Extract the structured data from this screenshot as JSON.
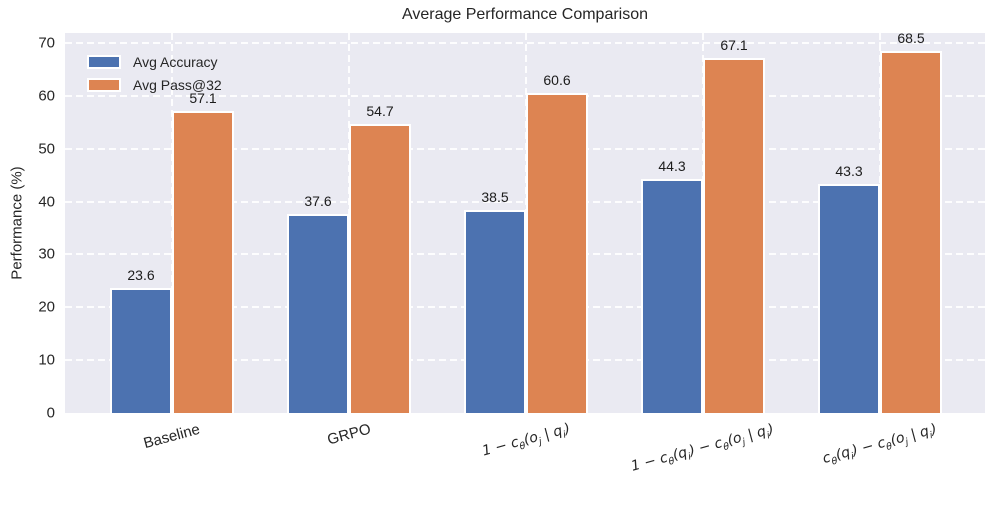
{
  "chart_data": {
    "type": "bar",
    "title": "Average Performance Comparison",
    "ylabel": "Performance (%)",
    "xlabel": "",
    "categories": [
      "Baseline",
      "GRPO",
      "1 − c_θ(o_j | q_i)",
      "1 − c_θ(q_i) − c_θ(o_j | q_i)",
      "c_θ(q_i) − c_θ(o_j | q_i)"
    ],
    "series": [
      {
        "name": "Avg Accuracy",
        "color": "#4C72B0",
        "values": [
          23.6,
          37.6,
          38.5,
          44.3,
          43.3
        ]
      },
      {
        "name": "Avg Pass@32",
        "color": "#DD8452",
        "values": [
          57.1,
          54.7,
          60.6,
          67.1,
          68.5
        ]
      }
    ],
    "yticks": [
      0,
      10,
      20,
      30,
      40,
      50,
      60,
      70
    ],
    "ylim": [
      0,
      71.9
    ],
    "grid": {
      "horizontal": true,
      "vertical": true,
      "style": "dashed",
      "color": "#FFFFFF"
    },
    "plot_background": "#EAEAF2",
    "legend_position": "upper left",
    "xtick_rotation_deg": 15,
    "bar_value_labels": true
  }
}
